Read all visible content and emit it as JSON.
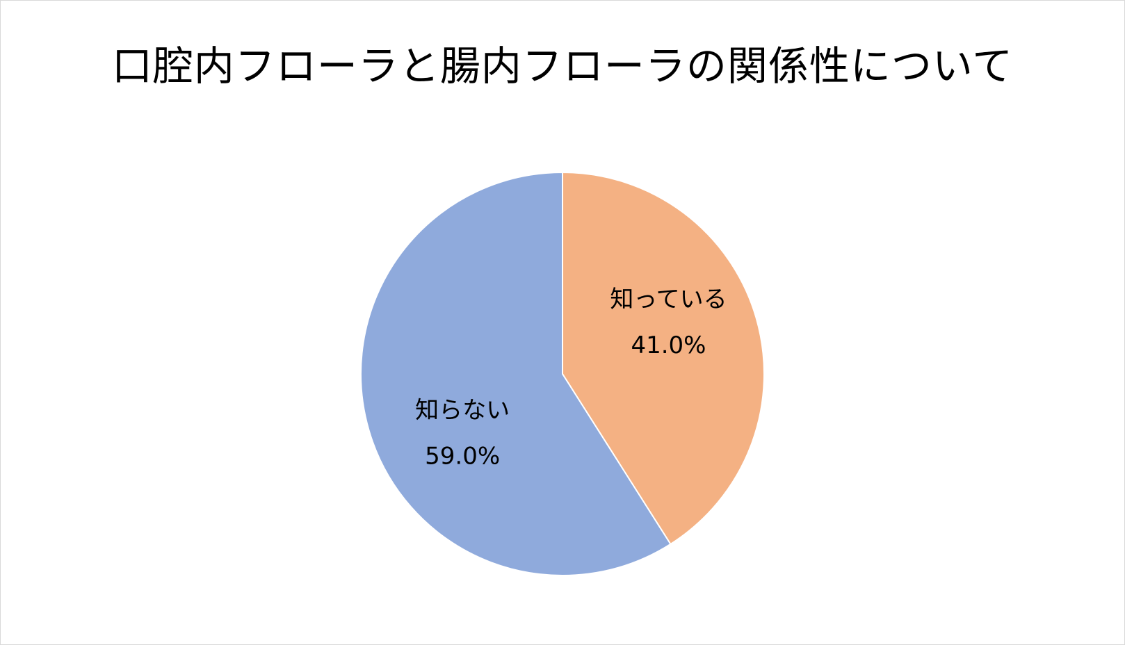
{
  "chart_data": {
    "type": "pie",
    "title": "口腔内フローラと腸内フローラの関係性について",
    "slices": [
      {
        "label": "知っている",
        "value": 41.0,
        "value_label": "41.0%",
        "color": "#F4B183"
      },
      {
        "label": "知らない",
        "value": 59.0,
        "value_label": "59.0%",
        "color": "#8FAADC"
      }
    ],
    "start": "12 o'clock",
    "direction": "clockwise",
    "legend": "none",
    "data_labels": "inside"
  }
}
